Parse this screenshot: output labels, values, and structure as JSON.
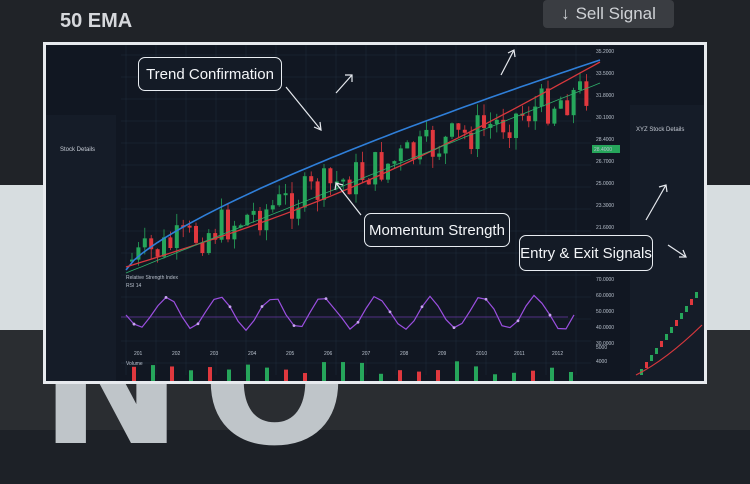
{
  "background": {
    "ema_label": "50 EMA",
    "sell_signal_label": "Sell Signal",
    "sell_icon": "arrow-down-icon",
    "accent_colors": {
      "up": "#26a65b",
      "down": "#e0383e",
      "ema_blue": "#2f7fd9",
      "ema_red": "#d8383d",
      "oscillator": "#8a3fd1"
    }
  },
  "callouts": {
    "trend": "Trend Confirmation",
    "momentum": "Momentum Strength",
    "entry_exit": "Entry & Exit Signals"
  },
  "panels": {
    "oscillator_label": "Relative Strength Index",
    "oscillator_sublabel": "RSI 14",
    "volume_label": "Volume",
    "right_panel_title": "XYZ Stock Details",
    "left_panel_title": "Stock Details"
  },
  "price_axis": [
    "35.2000",
    "33.5000",
    "31.8000",
    "30.1000",
    "28.4000",
    "26.7000",
    "25.0000",
    "23.3000",
    "21.6000",
    "20.0000"
  ],
  "rsi_axis": [
    "70.0000",
    "60.0000",
    "50.0000",
    "40.0000",
    "30.0000"
  ],
  "volume_axis": [
    "5000",
    "4000"
  ],
  "time_axis": [
    "201",
    "202",
    "203",
    "204",
    "205",
    "206",
    "207",
    "208",
    "209",
    "2010",
    "2011",
    "2012"
  ],
  "current_price_badge": "28.4000"
}
